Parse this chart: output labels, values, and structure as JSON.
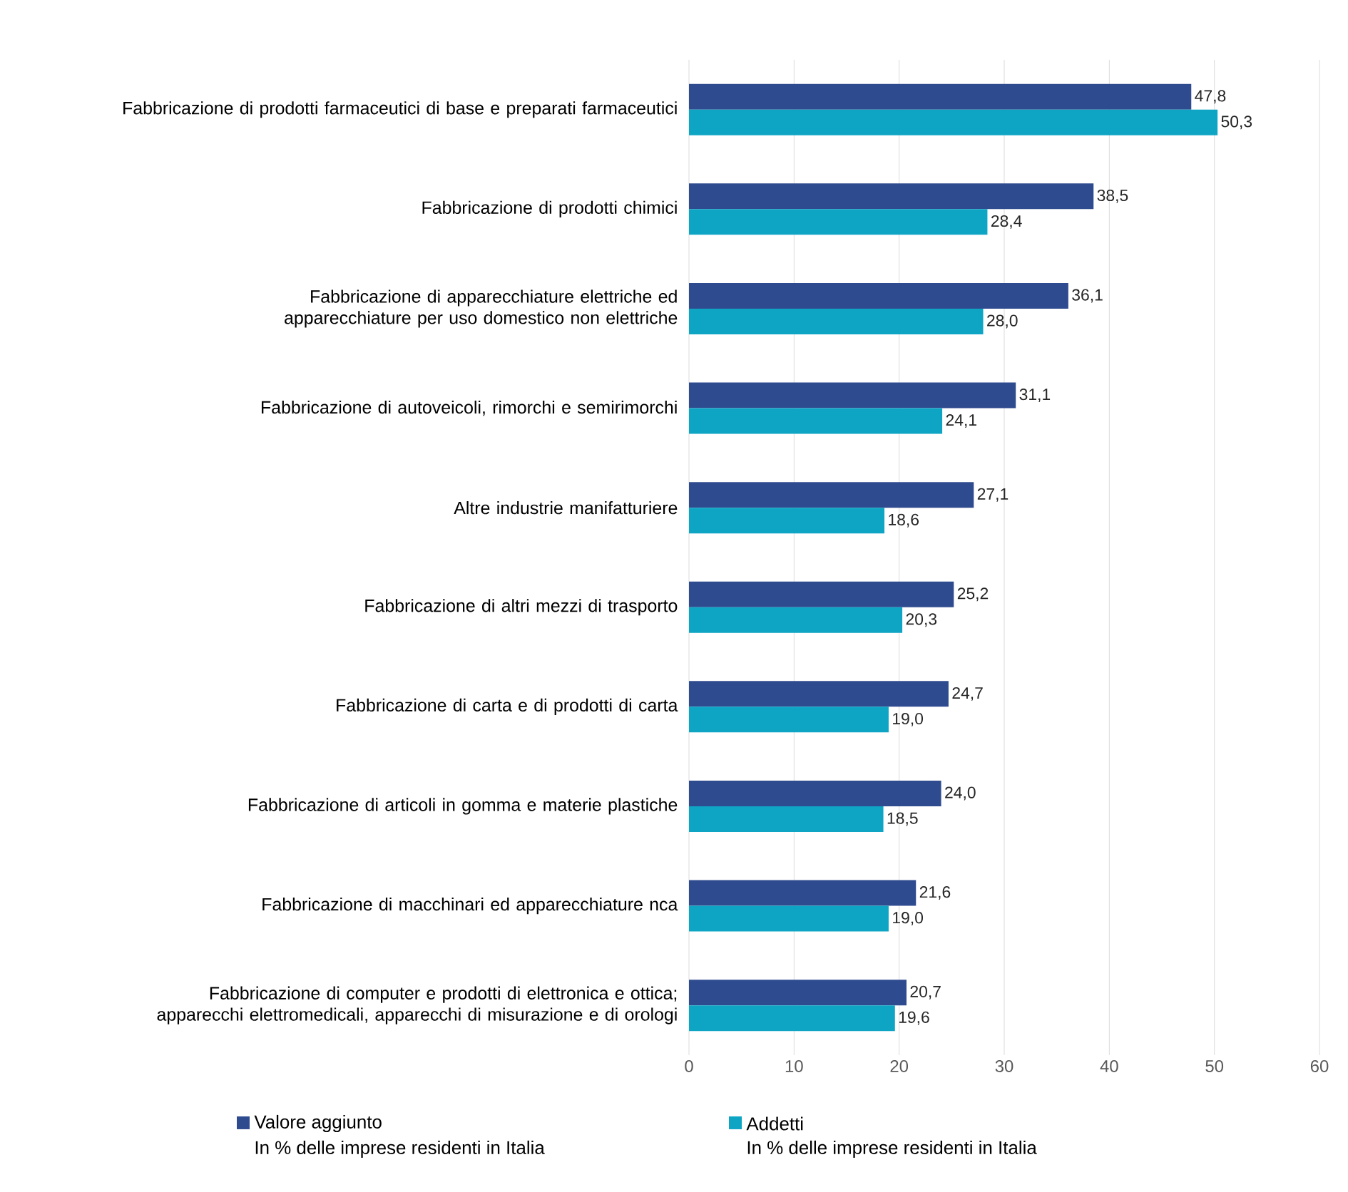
{
  "chart_data": {
    "type": "bar",
    "orientation": "horizontal",
    "categories": [
      "Fabbricazione di prodotti farmaceutici di base e preparati farmaceutici",
      "Fabbricazione di prodotti chimici",
      "Fabbricazione di apparecchiature elettriche ed apparecchiature per uso domestico non elettriche",
      "Fabbricazione di autoveicoli, rimorchi e semirimorchi",
      "Altre industrie manifatturiere",
      "Fabbricazione di altri mezzi di trasporto",
      "Fabbricazione di carta e di prodotti di carta",
      "Fabbricazione di articoli in gomma e materie plastiche",
      "Fabbricazione di macchinari ed apparecchiature nca",
      "Fabbricazione di computer e prodotti di elettronica e ottica; apparecchi elettromedicali, apparecchi di misurazione e di orologi"
    ],
    "series": [
      {
        "name": "Valore aggiunto",
        "color": "#2f4b8f",
        "values": [
          47.8,
          38.5,
          36.1,
          31.1,
          27.1,
          25.2,
          24.7,
          24.0,
          21.6,
          20.7
        ],
        "value_labels": [
          "47,8",
          "38,5",
          "36,1",
          "31,1",
          "27,1",
          "25,2",
          "24,7",
          "24,0",
          "21,6",
          "20,7"
        ]
      },
      {
        "name": "Addetti",
        "color": "#0ea5c4",
        "values": [
          50.3,
          28.4,
          28.0,
          24.1,
          18.6,
          20.3,
          19.0,
          18.5,
          19.0,
          19.6
        ],
        "value_labels": [
          "50,3",
          "28,4",
          "28,0",
          "24,1",
          "18,6",
          "20,3",
          "19,0",
          "18,5",
          "19,0",
          "19,6"
        ]
      }
    ],
    "annotations": [
      "In % delle imprese residenti in Italia",
      "In % delle imprese residenti in Italia"
    ],
    "xlim": [
      0,
      60
    ],
    "xticks": [
      0,
      10,
      20,
      30,
      40,
      50,
      60
    ],
    "grid": "x",
    "legend": "bottom"
  }
}
